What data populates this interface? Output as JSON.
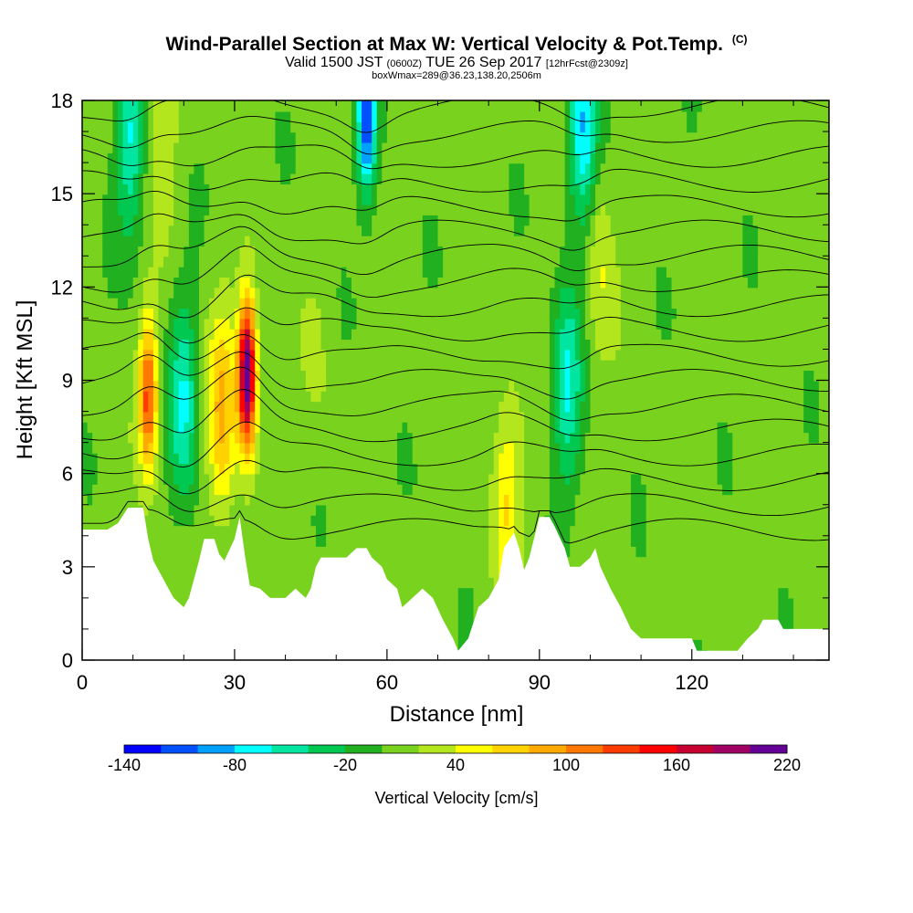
{
  "header": {
    "title": "Wind-Parallel Section at Max W: Vertical Velocity & Pot.Temp.",
    "title_tag": "(C)",
    "subtitle_main": "Valid 1500 JST",
    "subtitle_utc": "(0600Z)",
    "subtitle_date": "TUE 26 Sep 2017",
    "subtitle_fcst": "[12hrFcst@2309z]",
    "subtitle2": "boxWmax=289@36.23,138.20,2506m"
  },
  "chart_data": {
    "type": "heatmap",
    "title": "Wind-Parallel Section at Max W: Vertical Velocity & Pot.Temp.",
    "xlabel": "Distance [nm]",
    "ylabel": "Height [Kft MSL]",
    "xlim": [
      0,
      147
    ],
    "ylim": [
      0,
      18
    ],
    "x_ticks": [
      0,
      30,
      60,
      90,
      120
    ],
    "x_tick_labels": [
      "0",
      "30",
      "60",
      "90",
      "120"
    ],
    "y_ticks": [
      0,
      3,
      6,
      9,
      12,
      15,
      18
    ],
    "y_tick_labels": [
      "0",
      "3",
      "6",
      "9",
      "12",
      "15",
      "18"
    ],
    "colorbar": {
      "title": "Vertical Velocity [cm/s]",
      "levels": [
        -140,
        -120,
        -100,
        -80,
        -60,
        -40,
        -20,
        0,
        20,
        40,
        60,
        80,
        100,
        120,
        140,
        160,
        180,
        200,
        220
      ],
      "tick_values": [
        -140,
        -80,
        -20,
        40,
        100,
        160,
        220
      ],
      "tick_labels": [
        "-140",
        "-80",
        "-20",
        "40",
        "100",
        "160",
        "220"
      ],
      "colors": [
        "#0000ff",
        "#0050ff",
        "#00a0ff",
        "#00ffff",
        "#00e6a0",
        "#00c850",
        "#20b020",
        "#78d21e",
        "#b4e61e",
        "#ffff00",
        "#ffd200",
        "#ffaa00",
        "#ff7800",
        "#ff3c00",
        "#ff0000",
        "#c80032",
        "#a00064",
        "#640096"
      ]
    },
    "terrain_top_kft": [
      [
        0,
        4.2
      ],
      [
        5,
        4.2
      ],
      [
        7,
        4.4
      ],
      [
        9,
        4.9
      ],
      [
        12,
        4.9
      ],
      [
        13,
        3.9
      ],
      [
        14,
        3.2
      ],
      [
        16,
        2.6
      ],
      [
        18,
        2.0
      ],
      [
        20,
        1.7
      ],
      [
        21,
        2.0
      ],
      [
        23,
        3.2
      ],
      [
        24,
        3.9
      ],
      [
        26,
        3.9
      ],
      [
        27,
        3.4
      ],
      [
        28,
        3.2
      ],
      [
        30,
        3.9
      ],
      [
        31,
        4.6
      ],
      [
        32,
        3.4
      ],
      [
        33,
        2.4
      ],
      [
        35,
        2.3
      ],
      [
        37,
        2.0
      ],
      [
        40,
        2.0
      ],
      [
        42,
        2.3
      ],
      [
        44,
        2.0
      ],
      [
        45,
        2.3
      ],
      [
        46,
        3.0
      ],
      [
        47,
        3.3
      ],
      [
        52,
        3.3
      ],
      [
        54,
        3.6
      ],
      [
        56,
        3.6
      ],
      [
        57,
        3.3
      ],
      [
        59,
        3.0
      ],
      [
        60,
        2.6
      ],
      [
        62,
        2.3
      ],
      [
        63,
        1.7
      ],
      [
        65,
        2.0
      ],
      [
        67,
        2.3
      ],
      [
        69,
        2.0
      ],
      [
        71,
        1.3
      ],
      [
        73,
        0.7
      ],
      [
        74,
        0.3
      ],
      [
        76,
        0.7
      ],
      [
        78,
        1.7
      ],
      [
        80,
        2.0
      ],
      [
        82,
        2.6
      ],
      [
        83,
        3.6
      ],
      [
        85,
        4.1
      ],
      [
        86,
        3.6
      ],
      [
        87,
        2.9
      ],
      [
        88,
        3.3
      ],
      [
        90,
        4.6
      ],
      [
        92,
        4.6
      ],
      [
        93,
        4.3
      ],
      [
        95,
        3.6
      ],
      [
        96,
        3.0
      ],
      [
        98,
        3.0
      ],
      [
        100,
        3.3
      ],
      [
        101,
        3.6
      ],
      [
        102,
        3.0
      ],
      [
        104,
        2.3
      ],
      [
        106,
        1.7
      ],
      [
        108,
        1.0
      ],
      [
        110,
        0.7
      ],
      [
        115,
        0.7
      ],
      [
        120,
        0.7
      ],
      [
        121,
        0.3
      ],
      [
        129,
        0.3
      ],
      [
        131,
        0.7
      ],
      [
        133,
        1.0
      ],
      [
        134,
        1.3
      ],
      [
        137,
        1.3
      ],
      [
        138,
        1.0
      ],
      [
        141,
        1.0
      ],
      [
        145,
        1.0
      ],
      [
        147,
        1.0
      ]
    ],
    "updraft_maxima": [
      {
        "x": 32.5,
        "z": 9.2,
        "w": 220
      },
      {
        "x": 13.0,
        "z": 8.5,
        "w": 130
      },
      {
        "x": 27.5,
        "z": 8.0,
        "w": 80
      },
      {
        "x": 83.5,
        "z": 5.3,
        "w": 60
      },
      {
        "x": 16.0,
        "z": 17.2,
        "w": 40
      },
      {
        "x": 102.0,
        "z": 12.8,
        "w": 40
      },
      {
        "x": 46.5,
        "z": 9.5,
        "w": 20
      }
    ],
    "downdraft_minima": [
      {
        "x": 56.0,
        "z": 17.5,
        "w": -120
      },
      {
        "x": 98.5,
        "z": 17.2,
        "w": -80
      },
      {
        "x": 20.0,
        "z": 8.3,
        "w": -60
      },
      {
        "x": 95.5,
        "z": 8.8,
        "w": -60
      },
      {
        "x": 9.5,
        "z": 16.8,
        "w": -60
      }
    ],
    "isentropes": {
      "base_heights_kft": [
        4.2,
        5.0,
        5.8,
        6.6,
        7.4,
        8.2,
        9.0,
        9.8,
        10.6,
        11.4,
        12.2,
        13.0,
        13.8,
        14.6,
        15.4,
        16.2,
        17.0,
        17.8
      ]
    }
  }
}
